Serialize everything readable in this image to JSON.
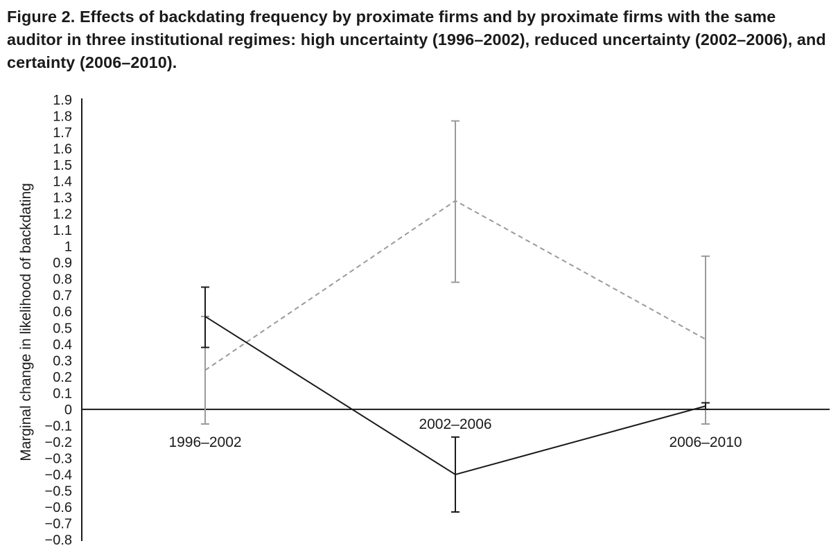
{
  "figure": {
    "title": "Figure 2.  Effects of backdating frequency by proximate firms and by proximate firms with the same auditor in three institutional regimes: high uncertainty (1996–2002), reduced uncertainty (2002–2006), and certainty (2006–2010)."
  },
  "colors": {
    "proximate_firms": "#9a9a9a",
    "same_auditor": "#1a1a1a",
    "axis": "#1a1a1a"
  },
  "chart_data": {
    "type": "line",
    "title": "Figure 2.  Effects of backdating frequency by proximate firms and by proximate firms with the same auditor in three institutional regimes: high uncertainty (1996–2002), reduced uncertainty (2002–2006), and certainty (2006–2010).",
    "xlabel": "",
    "ylabel": "Marginal change in likelihood of backdating",
    "categories": [
      "1996–2002",
      "2002–2006",
      "2006–2010"
    ],
    "ylim": [
      -0.8,
      1.9
    ],
    "yticks": [
      1.9,
      1.8,
      1.7,
      1.6,
      1.5,
      1.4,
      1.3,
      1.2,
      1.1,
      1,
      0.9,
      0.8,
      0.7,
      0.6,
      0.5,
      0.4,
      0.3,
      0.2,
      0.1,
      0,
      -0.1,
      -0.2,
      -0.3,
      -0.4,
      -0.5,
      -0.6,
      -0.7,
      -0.8
    ],
    "ytick_labels": [
      "1.9",
      "1.8",
      "1.7",
      "1.6",
      "1.5",
      "1.4",
      "1.3",
      "1.2",
      "1.1",
      "1",
      "0.9",
      "0.8",
      "0.7",
      "0.6",
      "0.5",
      "0.4",
      "0.3",
      "0.2",
      "0.1",
      "0",
      "−0.1",
      "−0.2",
      "−0.3",
      "−0.4",
      "−0.5",
      "−0.6",
      "−0.7",
      "−0.8"
    ],
    "grid": false,
    "legend": "none",
    "series": [
      {
        "style": "dashed",
        "color": "#9a9a9a",
        "values": [
          0.24,
          1.28,
          0.43
        ],
        "error_low": [
          -0.09,
          0.78,
          -0.09
        ],
        "error_high": [
          0.57,
          1.77,
          0.94
        ]
      },
      {
        "style": "solid",
        "color": "#1a1a1a",
        "values": [
          0.57,
          -0.4,
          0.02
        ],
        "error_low": [
          0.38,
          -0.63,
          0.0
        ],
        "error_high": [
          0.75,
          -0.17,
          0.04
        ]
      }
    ]
  }
}
